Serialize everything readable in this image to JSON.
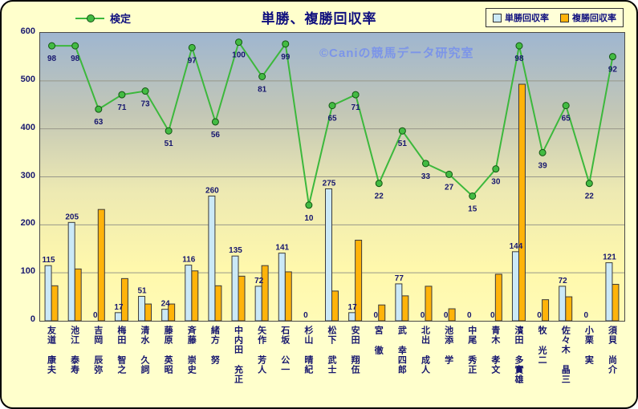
{
  "page": {
    "background": "#FFFFCC",
    "watermark": "©Caniの競馬データ研究室"
  },
  "chart_data": {
    "type": "combo-bar-line",
    "title": "単勝、複勝回収率",
    "legend_position": "top",
    "grid": true,
    "y_axis": {
      "min": 0,
      "max": 600,
      "step": 100,
      "tick_labels": [
        "0",
        "100",
        "200",
        "300",
        "400",
        "500",
        "600"
      ]
    },
    "categories": [
      "友道 康夫",
      "池江 泰寿",
      "吉岡 辰弥",
      "梅田 智之",
      "清水 久詞",
      "藤原 英昭",
      "斉藤 崇史",
      "緒方 努",
      "中内田 充正",
      "矢作 芳人",
      "石坂 公一",
      "杉山 晴紀",
      "松下 武士",
      "安田 翔伍",
      "宮 徹",
      "武 幸四郎",
      "北出 成人",
      "池添 学",
      "中尾 秀正",
      "青木 孝文",
      "濱田 多實雄",
      "牧 光二",
      "佐々木 晶三",
      "小栗 実",
      "須貝 尚介"
    ],
    "series": [
      {
        "name": "検定",
        "type": "line",
        "color": "#3CB83C",
        "data_labels": true,
        "values": [
          98,
          98,
          63,
          71,
          73,
          51,
          97,
          56,
          100,
          81,
          99,
          10,
          65,
          71,
          22,
          51,
          33,
          27,
          15,
          30,
          98,
          39,
          65,
          22,
          92
        ]
      },
      {
        "name": "単勝回収率",
        "type": "bar",
        "color": "#CBE9F7",
        "data_labels": true,
        "values": [
          115,
          205,
          0,
          17,
          51,
          24,
          116,
          260,
          135,
          72,
          141,
          0,
          275,
          17,
          0,
          77,
          0,
          0,
          0,
          0,
          144,
          0,
          72,
          0,
          121
        ]
      },
      {
        "name": "複勝回収率",
        "type": "bar",
        "color": "#FFB30A",
        "data_labels": false,
        "values": [
          73,
          108,
          232,
          88,
          35,
          35,
          104,
          73,
          93,
          115,
          102,
          0,
          62,
          168,
          33,
          52,
          72,
          25,
          0,
          97,
          493,
          44,
          50,
          0,
          76
        ]
      }
    ]
  }
}
